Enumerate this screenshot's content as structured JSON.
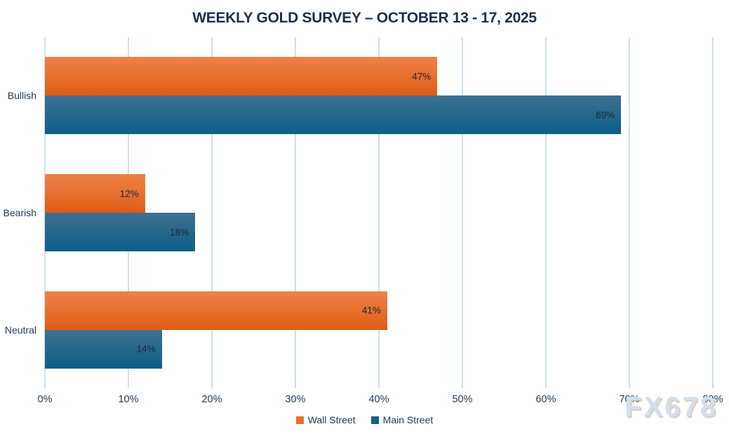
{
  "title": "WEEKLY GOLD SURVEY – OCTOBER 13 - 17, 2025",
  "watermark": "FX678",
  "colors": {
    "title_text": "#1c3048",
    "axis_text": "#1e3a56",
    "gridline": "#cbdff2",
    "data_label_text": "#1b2838",
    "background": "#ffffff",
    "watermark_text": "#d2dfee",
    "watermark_shadow": "#c5a47e",
    "wall_street": "#e8702e",
    "main_street": "#1a5f82"
  },
  "chart_data": {
    "type": "bar",
    "orientation": "horizontal",
    "title": "WEEKLY GOLD SURVEY – OCTOBER 13 - 17, 2025",
    "categories": [
      "Bullish",
      "Bearish",
      "Neutral"
    ],
    "series": [
      {
        "name": "Wall Street",
        "color": "#e8702e",
        "gradient": [
          "#ef8148",
          "#df5d15"
        ],
        "values": [
          47,
          12,
          41
        ]
      },
      {
        "name": "Main Street",
        "color": "#1a5f82",
        "gradient": [
          "#3f7090",
          "#0d5f88"
        ],
        "values": [
          69,
          18,
          14
        ]
      }
    ],
    "value_suffix": "%",
    "data_labels": [
      [
        "47%",
        "12%",
        "41%"
      ],
      [
        "69%",
        "18%",
        "14%"
      ]
    ],
    "xlabel": "",
    "ylabel": "",
    "xlim": [
      0,
      80
    ],
    "x_ticks": [
      "0%",
      "10%",
      "20%",
      "30%",
      "40%",
      "50%",
      "60%",
      "70%",
      "80%"
    ],
    "grid": true,
    "legend_position": "bottom"
  }
}
